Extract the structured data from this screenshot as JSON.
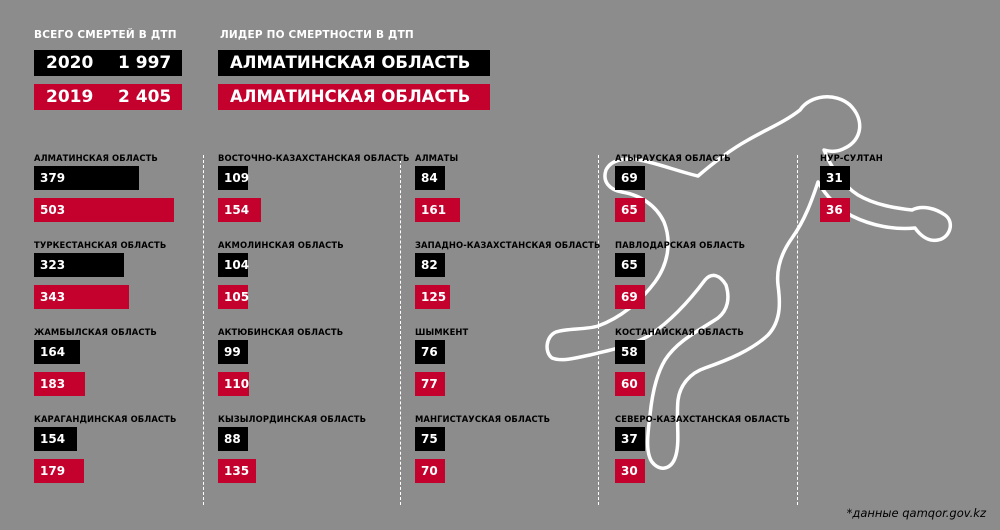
{
  "header": {
    "total_label": "ВСЕГО СМЕРТЕЙ В ДТП",
    "leader_label": "ЛИДЕР ПО СМЕРТНОСТИ В ДТП",
    "totals": [
      {
        "year": "2020",
        "value": "1 997",
        "color": "#000000"
      },
      {
        "year": "2019",
        "value": "2 405",
        "color": "#c4002d"
      }
    ],
    "leaders": [
      {
        "name": "АЛМАТИНСКАЯ ОБЛАСТЬ",
        "color": "#000000"
      },
      {
        "name": "АЛМАТИНСКАЯ ОБЛАСТЬ",
        "color": "#c4002d"
      }
    ]
  },
  "colors": {
    "y2020": "#000000",
    "y2019": "#c4002d",
    "background": "#8c8c8c"
  },
  "chart_data": {
    "type": "bar",
    "series": [
      {
        "name": "2020",
        "color": "#000000"
      },
      {
        "name": "2019",
        "color": "#c4002d"
      }
    ],
    "columns": [
      [
        {
          "region": "АЛМАТИНСКАЯ ОБЛАСТЬ",
          "v2020": 379,
          "v2019": 503
        },
        {
          "region": "ТУРКЕСТАНСКАЯ ОБЛАСТЬ",
          "v2020": 323,
          "v2019": 343
        },
        {
          "region": "ЖАМБЫЛСКАЯ ОБЛАСТЬ",
          "v2020": 164,
          "v2019": 183
        },
        {
          "region": "КАРАГАНДИНСКАЯ ОБЛАСТЬ",
          "v2020": 154,
          "v2019": 179
        }
      ],
      [
        {
          "region": "ВОСТОЧНО-КАЗАХСТАНСКАЯ ОБЛАСТЬ",
          "v2020": 109,
          "v2019": 154
        },
        {
          "region": "АКМОЛИНСКАЯ ОБЛАСТЬ",
          "v2020": 104,
          "v2019": 105
        },
        {
          "region": "АКТЮБИНСКАЯ ОБЛАСТЬ",
          "v2020": 99,
          "v2019": 110
        },
        {
          "region": "КЫЗЫЛОРДИНСКАЯ ОБЛАСТЬ",
          "v2020": 88,
          "v2019": 135
        }
      ],
      [
        {
          "region": "АЛМАТЫ",
          "v2020": 84,
          "v2019": 161
        },
        {
          "region": "ЗАПАДНО-КАЗАХСТАНСКАЯ ОБЛАСТЬ",
          "v2020": 82,
          "v2019": 125
        },
        {
          "region": "ШЫМКЕНТ",
          "v2020": 76,
          "v2019": 77
        },
        {
          "region": "МАНГИСТАУСКАЯ ОБЛАСТЬ",
          "v2020": 75,
          "v2019": 70
        }
      ],
      [
        {
          "region": "АТЫРАУСКАЯ ОБЛАСТЬ",
          "v2020": 69,
          "v2019": 65
        },
        {
          "region": "ПАВЛОДАРСКАЯ ОБЛАСТЬ",
          "v2020": 65,
          "v2019": 69
        },
        {
          "region": "КОСТАНАЙСКАЯ ОБЛАСТЬ",
          "v2020": 58,
          "v2019": 60
        },
        {
          "region": "СЕВЕРО-КАЗАХСТАНСКАЯ ОБЛАСТЬ",
          "v2020": 37,
          "v2019": 30
        }
      ],
      [
        {
          "region": "НУР-СУЛТАН",
          "v2020": 31,
          "v2019": 36
        }
      ]
    ]
  },
  "footer": {
    "source": "*данные qamqor.gov.kz"
  }
}
